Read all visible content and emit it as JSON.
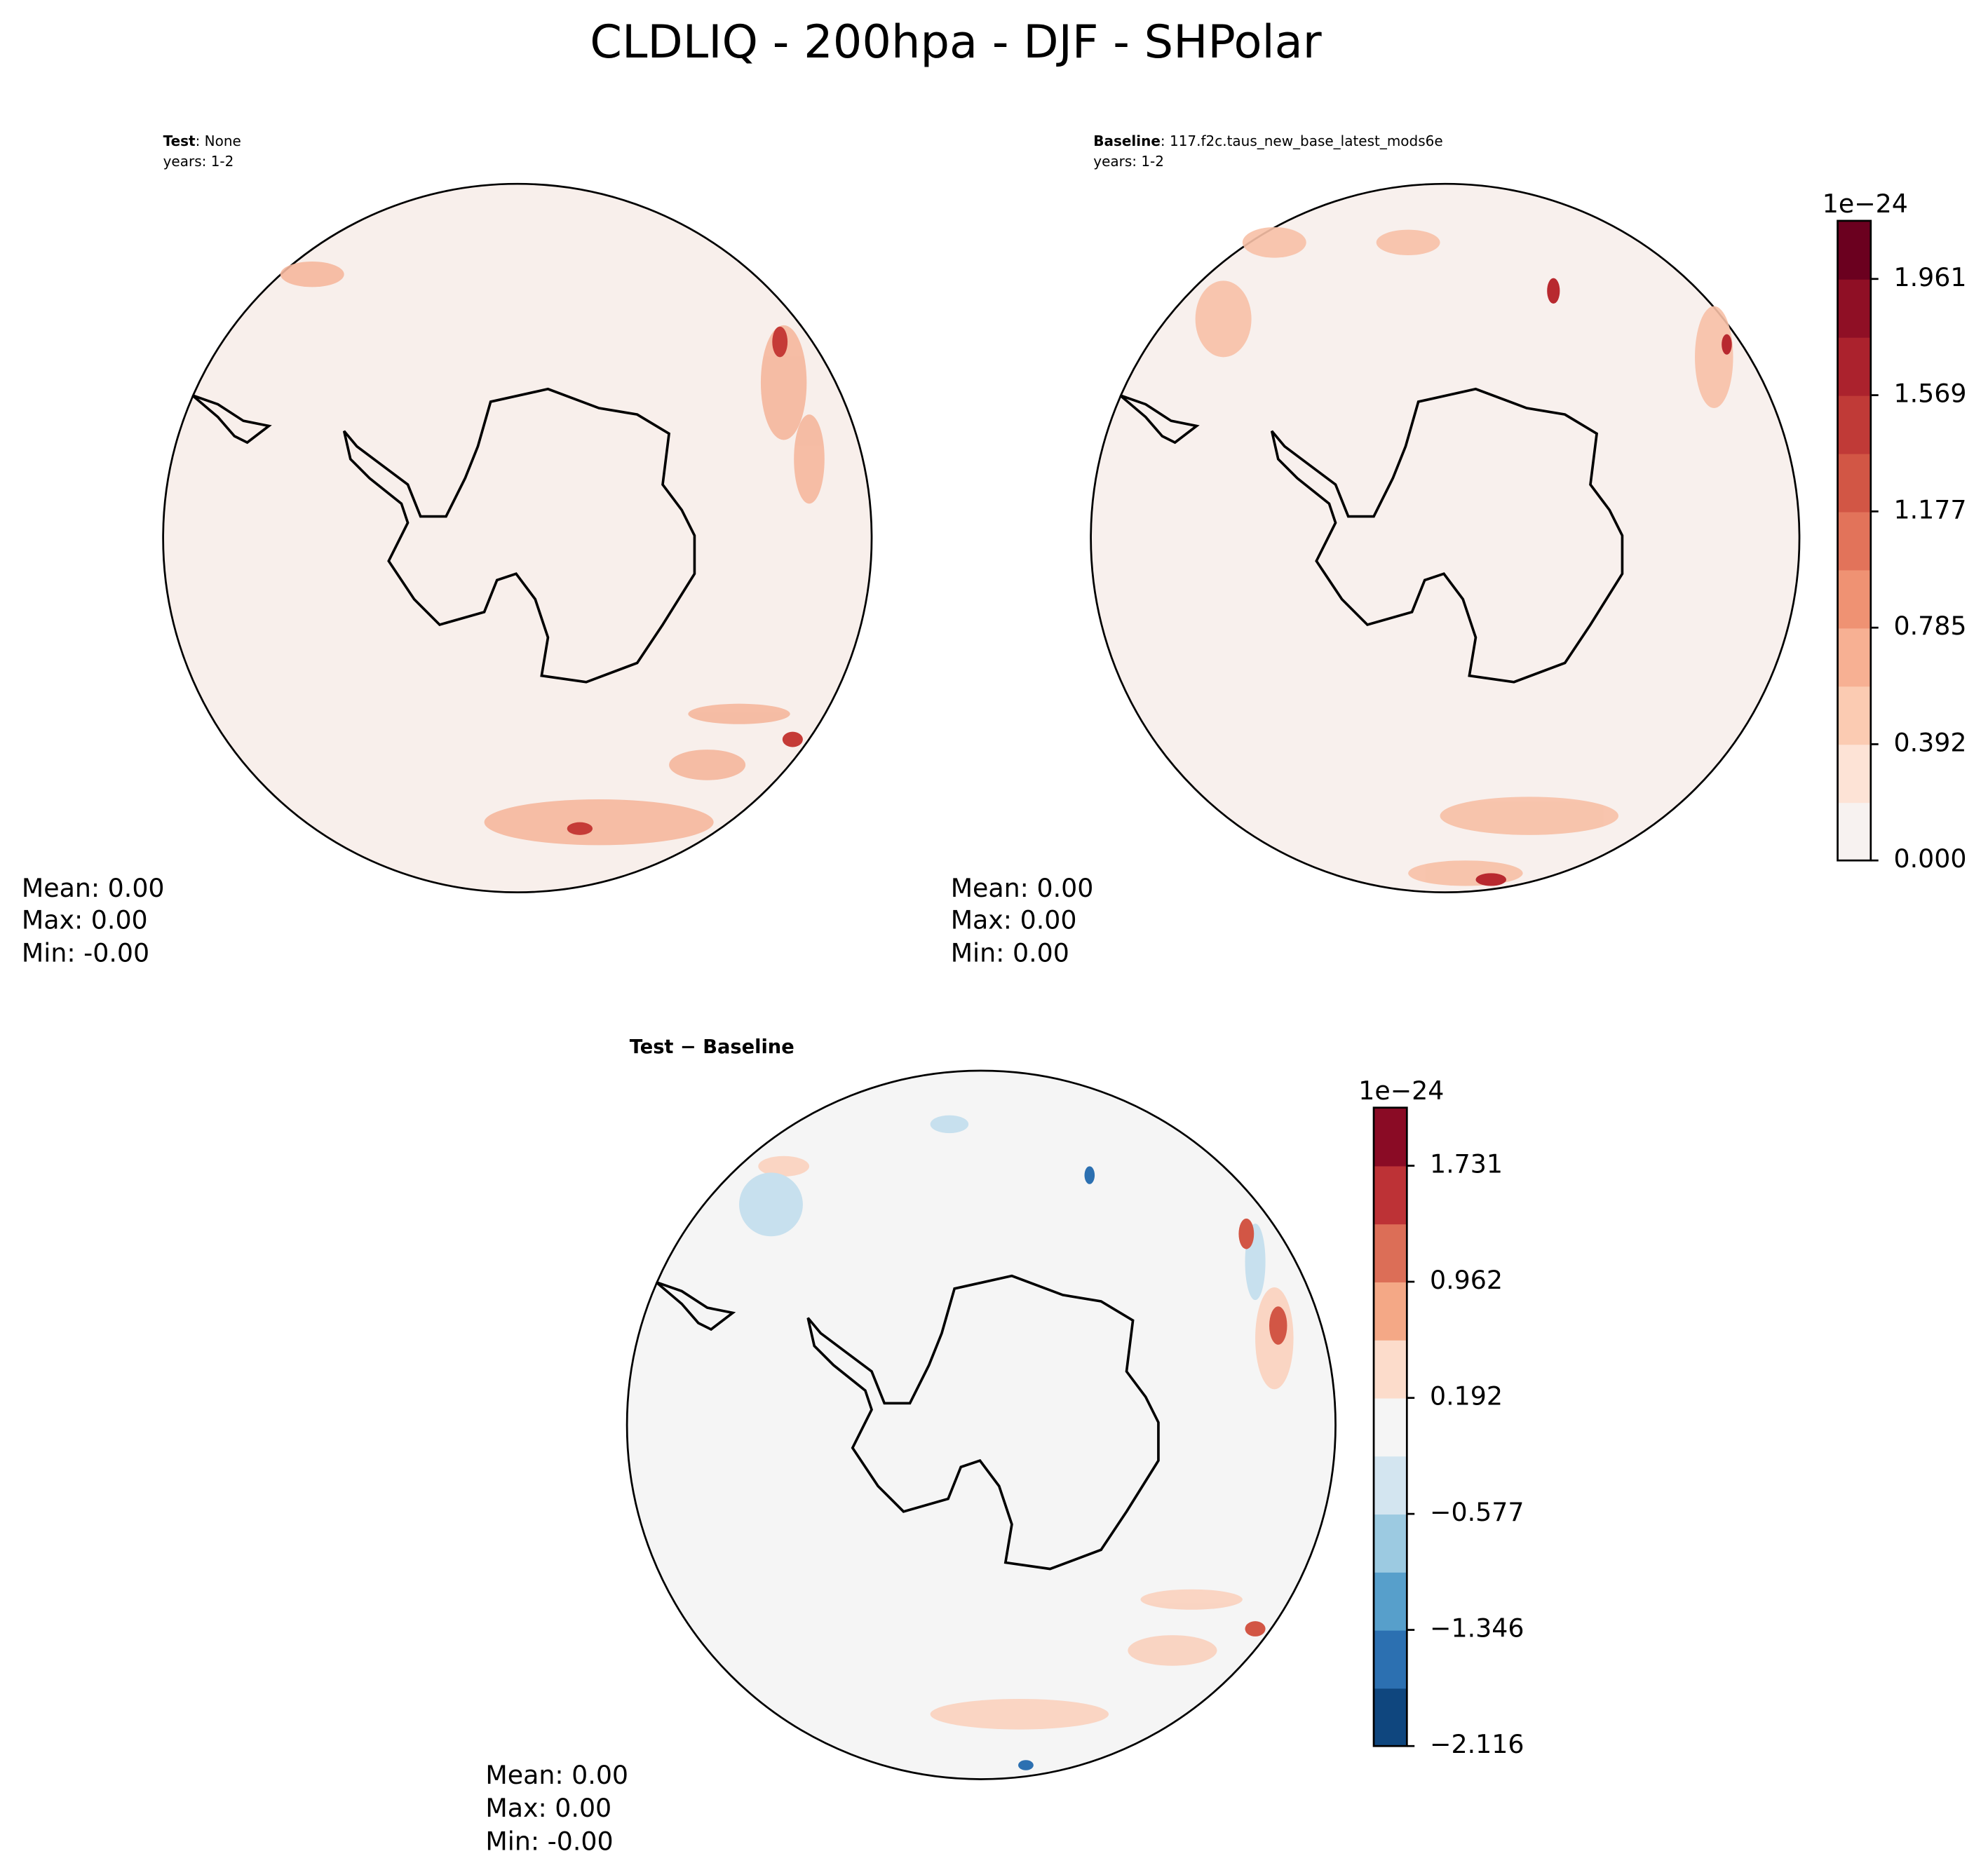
{
  "title": "CLDLIQ - 200hpa - DJF - SHPolar",
  "panels": [
    {
      "label": "Test",
      "subtitle": ": None",
      "years": "years: 1-2",
      "stats": [
        "Mean:  0.00",
        "Max:  0.00",
        "Min: -0.00"
      ]
    },
    {
      "label": "Baseline",
      "subtitle": ": 117.f2c.taus_new_base_latest_mods6e",
      "years": "years: 1-2",
      "stats": [
        "Mean:  0.00",
        "Max:  0.00",
        "Min:  0.00"
      ]
    },
    {
      "label": "Test − Baseline",
      "stats": [
        "Mean:  0.00",
        "Max:  0.00",
        "Min: -0.00"
      ]
    }
  ],
  "colorbars": [
    {
      "exponent": "1e−24",
      "lim": [
        0,
        2.157
      ],
      "ticks": [
        {
          "value": 0,
          "label": "0.000"
        },
        0.392,
        0.785,
        1.177,
        1.569,
        1.961
      ],
      "colors": [
        "#f7f2f0",
        "#fde3d6",
        "#fbcbb2",
        "#f7b093",
        "#ef9273",
        "#e2735a",
        "#d25645",
        "#c03a37",
        "#ab222d",
        "#8f0f25",
        "#6b001f"
      ]
    },
    {
      "exponent": "1e−24",
      "lim": [
        -2.116,
        2.116
      ],
      "ticks": [
        {
          "value": -2.116,
          "label": "−2.116"
        },
        {
          "value": -1.346,
          "label": "−1.346"
        },
        {
          "value": -0.577,
          "label": "−0.577"
        },
        0.192,
        0.962,
        1.731
      ],
      "colors": [
        "#0f467e",
        "#2c70b1",
        "#579fcb",
        "#9ccae1",
        "#d3e5f0",
        "#f5f5f5",
        "#fcdccb",
        "#f4a886",
        "#dc6e57",
        "#bd3236",
        "#8a0b25"
      ]
    }
  ]
}
